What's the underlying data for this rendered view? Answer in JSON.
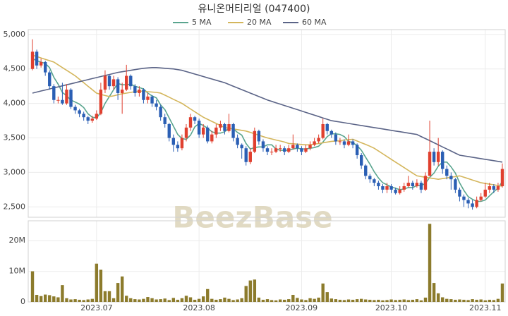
{
  "chart_data": [
    {
      "type": "candlestick",
      "title": "유니온머티리얼 (047400)",
      "watermark": "BeezBase",
      "up_color": "#e0402f",
      "down_color": "#2b5fb4",
      "grid": true,
      "ylim": [
        2350,
        5070
      ],
      "yticks": [
        {
          "value": 2500,
          "label": "2,500"
        },
        {
          "value": 3000,
          "label": "3,000"
        },
        {
          "value": 3500,
          "label": "3,500"
        },
        {
          "value": 4000,
          "label": "4,000"
        },
        {
          "value": 4500,
          "label": "4,500"
        },
        {
          "value": 5000,
          "label": "5,000"
        }
      ],
      "open": [
        4500,
        4750,
        4550,
        4600,
        4450,
        4250,
        4050,
        4050,
        4000,
        4200,
        3950,
        3900,
        3850,
        3800,
        3750,
        3780,
        3850,
        4200,
        4400,
        4250,
        4350,
        4150,
        4200,
        4400,
        4250,
        4150,
        4200,
        4050,
        4100,
        4000,
        3950,
        3800,
        3700,
        3500,
        3400,
        3350,
        3500,
        3650,
        3800,
        3750,
        3550,
        3650,
        3450,
        3550,
        3650,
        3700,
        3600,
        3700,
        3500,
        3400,
        3350,
        3150,
        3300,
        3600,
        3450,
        3350,
        3300,
        3300,
        3350,
        3350,
        3300,
        3350,
        3400,
        3350,
        3300,
        3350,
        3400,
        3450,
        3500,
        3700,
        3600,
        3550,
        3450,
        3450,
        3400,
        3450,
        3400,
        3250,
        3100,
        2950,
        2900,
        2850,
        2800,
        2750,
        2800,
        2750,
        2700,
        2750,
        2800,
        2850,
        2800,
        2850,
        2750,
        2950,
        3300,
        3150,
        3300,
        3050,
        2950,
        2900,
        2750,
        2650,
        2600,
        2550,
        2500,
        2600,
        2650,
        2750,
        2800,
        2750,
        2800
      ],
      "high": [
        4930,
        4780,
        4650,
        4620,
        4480,
        4280,
        4100,
        4300,
        4280,
        4220,
        3980,
        3920,
        3880,
        3820,
        3820,
        3900,
        4300,
        4480,
        4420,
        4400,
        4380,
        4300,
        4560,
        4420,
        4280,
        4250,
        4220,
        4150,
        4120,
        4050,
        3980,
        3850,
        3720,
        3550,
        3450,
        3550,
        3700,
        3850,
        3820,
        3780,
        3700,
        3680,
        3600,
        3700,
        3750,
        3720,
        3850,
        3720,
        3550,
        3420,
        3380,
        3350,
        3650,
        3620,
        3480,
        3380,
        3350,
        3400,
        3400,
        3380,
        3400,
        3550,
        3420,
        3380,
        3400,
        3450,
        3500,
        3550,
        3780,
        3720,
        3620,
        3580,
        3500,
        3480,
        3550,
        3480,
        3420,
        3280,
        3120,
        2980,
        2920,
        2880,
        2830,
        2850,
        2830,
        2780,
        2800,
        2850,
        2950,
        2880,
        2900,
        2880,
        3000,
        3750,
        3350,
        3500,
        3320,
        3100,
        3000,
        2920,
        2780,
        2680,
        2630,
        2600,
        2650,
        2700,
        2850,
        2850,
        2830,
        2850,
        3130
      ],
      "low": [
        4480,
        4500,
        4520,
        4400,
        4200,
        4000,
        4000,
        3980,
        3980,
        3920,
        3850,
        3800,
        3750,
        3700,
        3720,
        3760,
        3830,
        4150,
        4200,
        4200,
        4050,
        3850,
        4180,
        4200,
        4100,
        4100,
        4000,
        4000,
        3950,
        3900,
        3750,
        3650,
        3450,
        3300,
        3300,
        3320,
        3450,
        3600,
        3700,
        3500,
        3500,
        3420,
        3420,
        3500,
        3600,
        3550,
        3580,
        3450,
        3350,
        3200,
        3100,
        3120,
        3280,
        3400,
        3300,
        3250,
        3250,
        3280,
        3300,
        3250,
        3280,
        3330,
        3300,
        3250,
        3280,
        3320,
        3380,
        3420,
        3480,
        3550,
        3500,
        3400,
        3400,
        3350,
        3380,
        3350,
        3200,
        3050,
        2900,
        2850,
        2800,
        2750,
        2700,
        2700,
        2700,
        2680,
        2680,
        2720,
        2780,
        2750,
        2780,
        2700,
        2730,
        2950,
        3100,
        3100,
        2980,
        2900,
        2750,
        2700,
        2580,
        2500,
        2480,
        2460,
        2480,
        2580,
        2630,
        2700,
        2700,
        2720,
        2780
      ],
      "close": [
        4750,
        4550,
        4600,
        4450,
        4250,
        4050,
        4050,
        4000,
        4200,
        3950,
        3900,
        3850,
        3800,
        3750,
        3780,
        3850,
        4200,
        4400,
        4250,
        4350,
        4150,
        4200,
        4400,
        4250,
        4150,
        4200,
        4050,
        4100,
        4000,
        3950,
        3800,
        3700,
        3500,
        3400,
        3350,
        3500,
        3650,
        3800,
        3750,
        3550,
        3650,
        3450,
        3550,
        3650,
        3700,
        3600,
        3700,
        3500,
        3400,
        3350,
        3150,
        3300,
        3600,
        3450,
        3350,
        3300,
        3300,
        3350,
        3350,
        3300,
        3350,
        3400,
        3350,
        3300,
        3350,
        3400,
        3450,
        3500,
        3700,
        3600,
        3550,
        3450,
        3450,
        3400,
        3450,
        3400,
        3250,
        3100,
        2950,
        2900,
        2850,
        2800,
        2750,
        2800,
        2750,
        2700,
        2750,
        2800,
        2850,
        2800,
        2850,
        2750,
        2950,
        3300,
        3150,
        3300,
        3050,
        2950,
        2900,
        2750,
        2650,
        2600,
        2550,
        2500,
        2600,
        2650,
        2750,
        2800,
        2750,
        2800,
        3050
      ],
      "series": [
        {
          "name": "5 MA",
          "color": "#5aa58f",
          "values": [
            4650,
            4620,
            4600,
            4580,
            4520,
            4380,
            4280,
            4160,
            4110,
            4050,
            4020,
            3990,
            3940,
            3850,
            3800,
            3790,
            3870,
            4000,
            4100,
            4200,
            4290,
            4270,
            4270,
            4280,
            4250,
            4230,
            4210,
            4150,
            4110,
            4080,
            3980,
            3910,
            3790,
            3670,
            3550,
            3490,
            3480,
            3540,
            3660,
            3710,
            3680,
            3640,
            3590,
            3570,
            3570,
            3590,
            3640,
            3630,
            3580,
            3540,
            3420,
            3340,
            3360,
            3370,
            3370,
            3400,
            3400,
            3340,
            3320,
            3320,
            3320,
            3340,
            3350,
            3340,
            3340,
            3350,
            3360,
            3380,
            3440,
            3520,
            3560,
            3560,
            3550,
            3520,
            3450,
            3430,
            3390,
            3320,
            3220,
            3120,
            3010,
            2920,
            2850,
            2820,
            2790,
            2770,
            2750,
            2760,
            2780,
            2780,
            2810,
            2810,
            2840,
            2930,
            2990,
            3090,
            3150,
            3150,
            3080,
            2990,
            2850,
            2740,
            2650,
            2610,
            2580,
            2580,
            2600,
            2660,
            2720,
            2770,
            2870
          ]
        },
        {
          "name": "20 MA",
          "color": "#d4b65c",
          "values": [
            4700,
            4680,
            4660,
            4640,
            4620,
            4600,
            4560,
            4520,
            4480,
            4440,
            4400,
            4350,
            4300,
            4250,
            4200,
            4150,
            4130,
            4115,
            4100,
            4110,
            4125,
            4140,
            4150,
            4160,
            4170,
            4180,
            4175,
            4170,
            4165,
            4160,
            4150,
            4120,
            4090,
            4060,
            4030,
            4000,
            3960,
            3920,
            3880,
            3840,
            3800,
            3770,
            3740,
            3710,
            3680,
            3650,
            3640,
            3630,
            3620,
            3610,
            3600,
            3580,
            3560,
            3540,
            3520,
            3500,
            3485,
            3470,
            3455,
            3440,
            3420,
            3415,
            3410,
            3405,
            3400,
            3400,
            3410,
            3420,
            3430,
            3440,
            3450,
            3455,
            3460,
            3470,
            3475,
            3480,
            3455,
            3430,
            3405,
            3380,
            3350,
            3310,
            3270,
            3230,
            3190,
            3150,
            3110,
            3070,
            3030,
            2990,
            2950,
            2940,
            2930,
            2920,
            2910,
            2900,
            2910,
            2920,
            2930,
            2940,
            2950,
            2930,
            2910,
            2890,
            2870,
            2850,
            2840,
            2830,
            2820,
            2810,
            2800
          ]
        },
        {
          "name": "60 MA",
          "color": "#5b6487",
          "values": [
            4150,
            4165,
            4180,
            4195,
            4210,
            4225,
            4240,
            4255,
            4270,
            4285,
            4300,
            4315,
            4330,
            4345,
            4360,
            4375,
            4390,
            4405,
            4420,
            4435,
            4450,
            4460,
            4470,
            4480,
            4490,
            4500,
            4510,
            4515,
            4520,
            4520,
            4515,
            4510,
            4505,
            4500,
            4490,
            4480,
            4462,
            4444,
            4426,
            4408,
            4390,
            4372,
            4354,
            4336,
            4318,
            4300,
            4275,
            4250,
            4225,
            4200,
            4175,
            4150,
            4125,
            4100,
            4075,
            4050,
            4030,
            4010,
            3990,
            3970,
            3950,
            3930,
            3910,
            3890,
            3870,
            3850,
            3830,
            3810,
            3790,
            3770,
            3750,
            3740,
            3730,
            3720,
            3710,
            3700,
            3690,
            3680,
            3670,
            3660,
            3650,
            3640,
            3630,
            3620,
            3610,
            3600,
            3590,
            3580,
            3570,
            3560,
            3550,
            3520,
            3490,
            3460,
            3430,
            3400,
            3370,
            3340,
            3310,
            3280,
            3250,
            3240,
            3230,
            3220,
            3210,
            3200,
            3190,
            3180,
            3170,
            3160,
            3150
          ]
        }
      ]
    },
    {
      "type": "bar",
      "color": "#8c7b2c",
      "grid": true,
      "ylim": [
        0,
        26500000
      ],
      "yticks": [
        0,
        {
          "value": 10000000,
          "label": "10M"
        },
        {
          "value": 20000000,
          "label": "20M"
        }
      ],
      "categories": [
        null,
        null,
        null,
        null,
        null,
        null,
        null,
        null,
        null,
        null,
        null,
        null,
        null,
        null,
        null,
        "2023.07",
        null,
        null,
        null,
        null,
        null,
        null,
        null,
        null,
        null,
        null,
        null,
        null,
        null,
        null,
        null,
        null,
        null,
        null,
        null,
        null,
        null,
        null,
        null,
        "2023.08",
        null,
        null,
        null,
        null,
        null,
        null,
        null,
        null,
        null,
        null,
        null,
        null,
        null,
        null,
        null,
        null,
        null,
        null,
        null,
        null,
        null,
        null,
        null,
        "2023.09",
        null,
        null,
        null,
        null,
        null,
        null,
        null,
        null,
        null,
        null,
        null,
        null,
        null,
        null,
        null,
        null,
        null,
        null,
        null,
        null,
        "2023.10",
        null,
        null,
        null,
        null,
        null,
        null,
        null,
        null,
        null,
        null,
        null,
        null,
        null,
        null,
        null,
        null,
        null,
        null,
        null,
        null,
        null,
        "2023.11",
        null,
        null,
        null,
        null
      ],
      "values": [
        10000000,
        2300000,
        1900000,
        2400000,
        2200000,
        1800000,
        1500000,
        5500000,
        1200000,
        800000,
        900000,
        700000,
        600000,
        800000,
        1000000,
        12500000,
        10500000,
        3500000,
        3500000,
        1200000,
        6200000,
        8300000,
        2000000,
        1200000,
        900000,
        800000,
        1000000,
        1600000,
        1200000,
        800000,
        900000,
        1100000,
        600000,
        1300000,
        700000,
        1200000,
        2000000,
        1500000,
        700000,
        1000000,
        1800000,
        4200000,
        1000000,
        700000,
        900000,
        1400000,
        1000000,
        600000,
        800000,
        1200000,
        5200000,
        7000000,
        7300000,
        1400000,
        700000,
        900000,
        600000,
        500000,
        800000,
        700000,
        900000,
        2300000,
        1300000,
        800000,
        600000,
        1200000,
        1000000,
        1400000,
        6000000,
        3200000,
        1100000,
        900000,
        700000,
        600000,
        800000,
        700000,
        900000,
        1000000,
        800000,
        700000,
        600000,
        700000,
        500000,
        600000,
        800000,
        600000,
        700000,
        800000,
        600000,
        700000,
        900000,
        500000,
        1400000,
        25500000,
        6200000,
        2800000,
        1500000,
        1000000,
        900000,
        700000,
        800000,
        700000,
        600000,
        900000,
        700000,
        800000,
        500000,
        700000,
        600000,
        1000000,
        6000000
      ]
    }
  ]
}
